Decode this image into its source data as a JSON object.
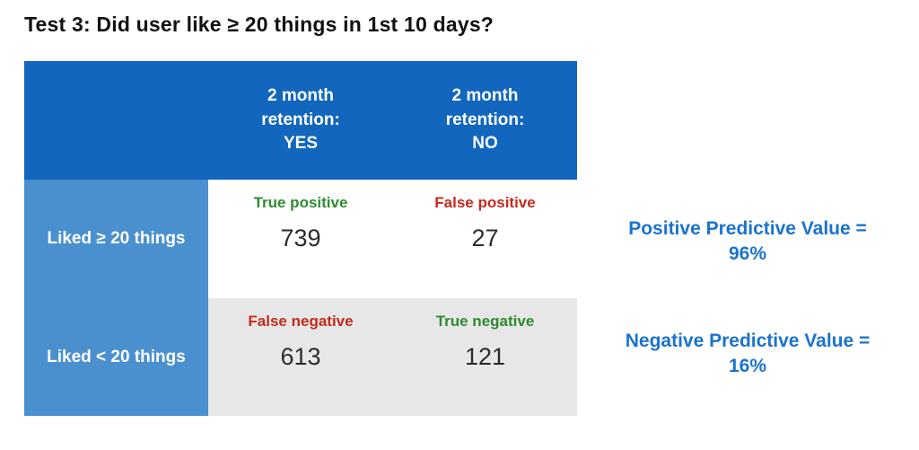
{
  "title": "Test 3: Did user like ≥ 20 things in 1st 10 days?",
  "colors": {
    "header_blue": "#1266bd",
    "row_label_blue": "#4a90cf",
    "gray_row_bg": "#e7e7e8",
    "true_green": "#2e8b2e",
    "false_red": "#c42a1c",
    "annotation_blue": "#1a73ce"
  },
  "table": {
    "columns": [
      {
        "line1": "2 month",
        "line2": "retention:",
        "line3": "YES"
      },
      {
        "line1": "2 month",
        "line2": "retention:",
        "line3": "NO"
      }
    ],
    "rows": [
      {
        "label": "Liked ≥ 20 things",
        "cells": [
          {
            "tag": "True positive",
            "tag_color": "green",
            "value": "739"
          },
          {
            "tag": "False positive",
            "tag_color": "red",
            "value": "27"
          }
        ]
      },
      {
        "label": "Liked < 20 things",
        "cells": [
          {
            "tag": "False negative",
            "tag_color": "red",
            "value": "613"
          },
          {
            "tag": "True negative",
            "tag_color": "green",
            "value": "121"
          }
        ]
      }
    ]
  },
  "annotations": [
    {
      "line1": "Positive Predictive Value =",
      "line2": "96%"
    },
    {
      "line1": "Negative Predictive Value =",
      "line2": "16%"
    }
  ],
  "chart_data": {
    "type": "table",
    "title": "Test 3: Did user like ≥ 20 things in 1st 10 days?",
    "columns": [
      "",
      "2 month retention: YES",
      "2 month retention: NO"
    ],
    "rows": [
      [
        "Liked ≥ 20 things",
        "True positive: 739",
        "False positive: 27"
      ],
      [
        "Liked < 20 things",
        "False negative: 613",
        "True negative: 121"
      ]
    ],
    "derived_metrics": [
      "Positive Predictive Value = 96%",
      "Negative Predictive Value = 16%"
    ]
  }
}
